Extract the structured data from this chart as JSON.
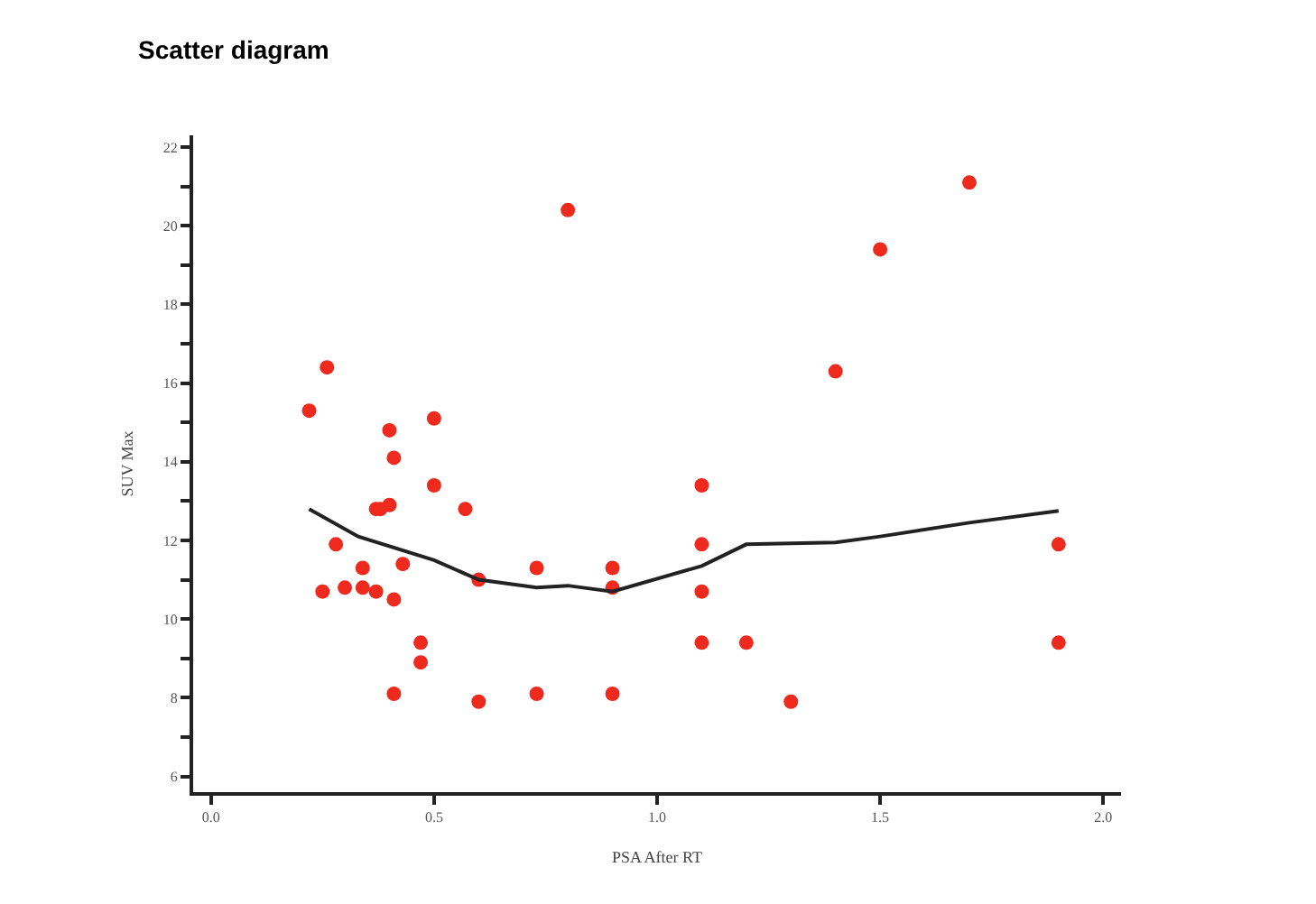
{
  "chart_data": {
    "type": "scatter",
    "title": "Scatter diagram",
    "xlabel": "PSA After RT",
    "ylabel": "SUV Max",
    "xlim": [
      -0.04,
      2.04
    ],
    "ylim": [
      5.6,
      22.3
    ],
    "xticks": [
      {
        "value": 0,
        "label": "0.0"
      },
      {
        "value": 0.5,
        "label": "0.5"
      },
      {
        "value": 1,
        "label": "1.0"
      },
      {
        "value": 1.5,
        "label": "1.5"
      },
      {
        "value": 2,
        "label": "2.0"
      }
    ],
    "yticks": [
      6,
      {
        "value": 7,
        "label": null
      },
      8,
      {
        "value": 9,
        "label": null
      },
      10,
      {
        "value": 11,
        "label": null
      },
      12,
      {
        "value": 13,
        "label": null
      },
      14,
      {
        "value": 15,
        "label": null
      },
      16,
      {
        "value": 17,
        "label": null
      },
      18,
      {
        "value": 19,
        "label": null
      },
      20,
      {
        "value": 21,
        "label": null
      },
      22
    ],
    "series": [
      {
        "marker": "circle",
        "color": "#ee2a1e",
        "x": [
          0.22,
          0.26,
          0.25,
          0.28,
          0.3,
          0.34,
          0.34,
          0.37,
          0.37,
          0.38,
          0.4,
          0.4,
          0.41,
          0.41,
          0.41,
          0.43,
          0.47,
          0.47,
          0.5,
          0.5,
          0.57,
          0.6,
          0.6,
          0.73,
          0.73,
          0.8,
          0.9,
          0.9,
          0.9,
          1.1,
          1.1,
          1.1,
          1.1,
          1.2,
          1.3,
          1.4,
          1.5,
          1.7,
          1.9,
          1.9
        ],
        "values": [
          15.3,
          16.4,
          10.7,
          11.9,
          10.8,
          11.3,
          10.8,
          10.7,
          12.8,
          12.8,
          12.9,
          14.8,
          14.1,
          10.5,
          8.1,
          11.4,
          9.4,
          8.9,
          15.1,
          13.4,
          12.8,
          11.0,
          7.9,
          11.3,
          8.1,
          20.4,
          11.3,
          10.8,
          8.1,
          13.4,
          11.9,
          10.7,
          9.4,
          9.4,
          7.9,
          16.3,
          19.4,
          21.1,
          11.9,
          9.4
        ]
      },
      {
        "type": "line",
        "marker": "none",
        "line_style": "solid",
        "color": "#222222",
        "x": [
          0.22,
          0.33,
          0.5,
          0.6,
          0.73,
          0.8,
          0.9,
          1.1,
          1.2,
          1.4,
          1.5,
          1.7,
          1.9
        ],
        "values": [
          12.8,
          12.1,
          11.5,
          11.0,
          10.8,
          10.85,
          10.7,
          11.35,
          11.9,
          11.95,
          12.1,
          12.45,
          12.75
        ]
      }
    ]
  }
}
